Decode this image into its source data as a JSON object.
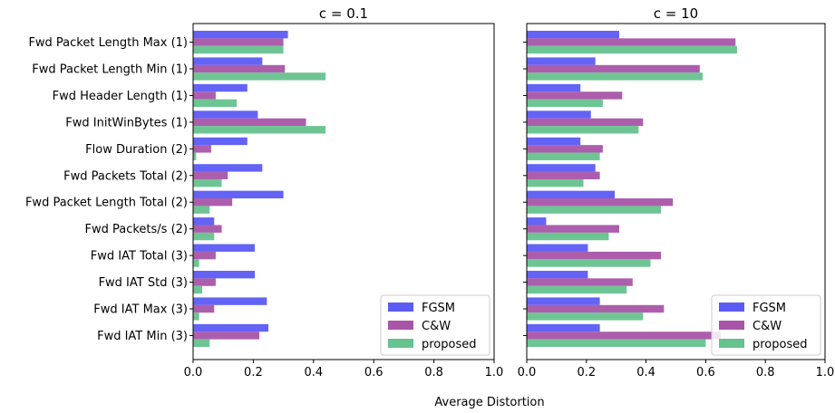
{
  "xlabel": "Average Distortion",
  "chart_data": [
    {
      "type": "bar",
      "orientation": "horizontal",
      "title": "c = 0.1",
      "xlim": [
        0,
        1.0
      ],
      "xticks": [
        "0.0",
        "0.2",
        "0.4",
        "0.6",
        "0.8",
        "1.0"
      ],
      "categories": [
        "Fwd Packet Length Max (1)",
        "Fwd Packet Length Min (1)",
        "Fwd Header Length (1)",
        "Fwd InitWinBytes (1)",
        "Flow Duration (2)",
        "Fwd Packets Total (2)",
        "Fwd Packet Length Total (2)",
        "Fwd Packets/s (2)",
        "Fwd IAT Total (3)",
        "Fwd IAT Std (3)",
        "Fwd IAT Max (3)",
        "Fwd IAT Min (3)"
      ],
      "series": [
        {
          "name": "FGSM",
          "color": "#5b5bf5",
          "values": [
            0.315,
            0.23,
            0.18,
            0.215,
            0.18,
            0.23,
            0.3,
            0.07,
            0.205,
            0.205,
            0.245,
            0.25
          ]
        },
        {
          "name": "C&W",
          "color": "#a855a8",
          "values": [
            0.3,
            0.305,
            0.075,
            0.375,
            0.06,
            0.115,
            0.13,
            0.095,
            0.075,
            0.075,
            0.07,
            0.22
          ]
        },
        {
          "name": "proposed",
          "color": "#66c28e",
          "values": [
            0.3,
            0.44,
            0.145,
            0.44,
            0.01,
            0.095,
            0.055,
            0.07,
            0.02,
            0.03,
            0.02,
            0.055
          ]
        }
      ],
      "legend": "lower-right"
    },
    {
      "type": "bar",
      "orientation": "horizontal",
      "title": "c = 10",
      "xlim": [
        0,
        1.0
      ],
      "xticks": [
        "0.0",
        "0.2",
        "0.4",
        "0.6",
        "0.8",
        "1.0"
      ],
      "categories": [
        "Fwd Packet Length Max (1)",
        "Fwd Packet Length Min (1)",
        "Fwd Header Length (1)",
        "Fwd InitWinBytes (1)",
        "Flow Duration (2)",
        "Fwd Packets Total (2)",
        "Fwd Packet Length Total (2)",
        "Fwd Packets/s (2)",
        "Fwd IAT Total (3)",
        "Fwd IAT Std (3)",
        "Fwd IAT Max (3)",
        "Fwd IAT Min (3)"
      ],
      "series": [
        {
          "name": "FGSM",
          "color": "#5b5bf5",
          "values": [
            0.31,
            0.23,
            0.18,
            0.215,
            0.18,
            0.23,
            0.295,
            0.065,
            0.205,
            0.205,
            0.245,
            0.245
          ]
        },
        {
          "name": "C&W",
          "color": "#a855a8",
          "values": [
            0.7,
            0.58,
            0.32,
            0.39,
            0.255,
            0.245,
            0.49,
            0.31,
            0.45,
            0.355,
            0.46,
            0.65
          ]
        },
        {
          "name": "proposed",
          "color": "#66c28e",
          "values": [
            0.705,
            0.59,
            0.255,
            0.375,
            0.245,
            0.19,
            0.45,
            0.275,
            0.415,
            0.335,
            0.39,
            0.6
          ]
        }
      ],
      "legend": "lower-right"
    }
  ]
}
